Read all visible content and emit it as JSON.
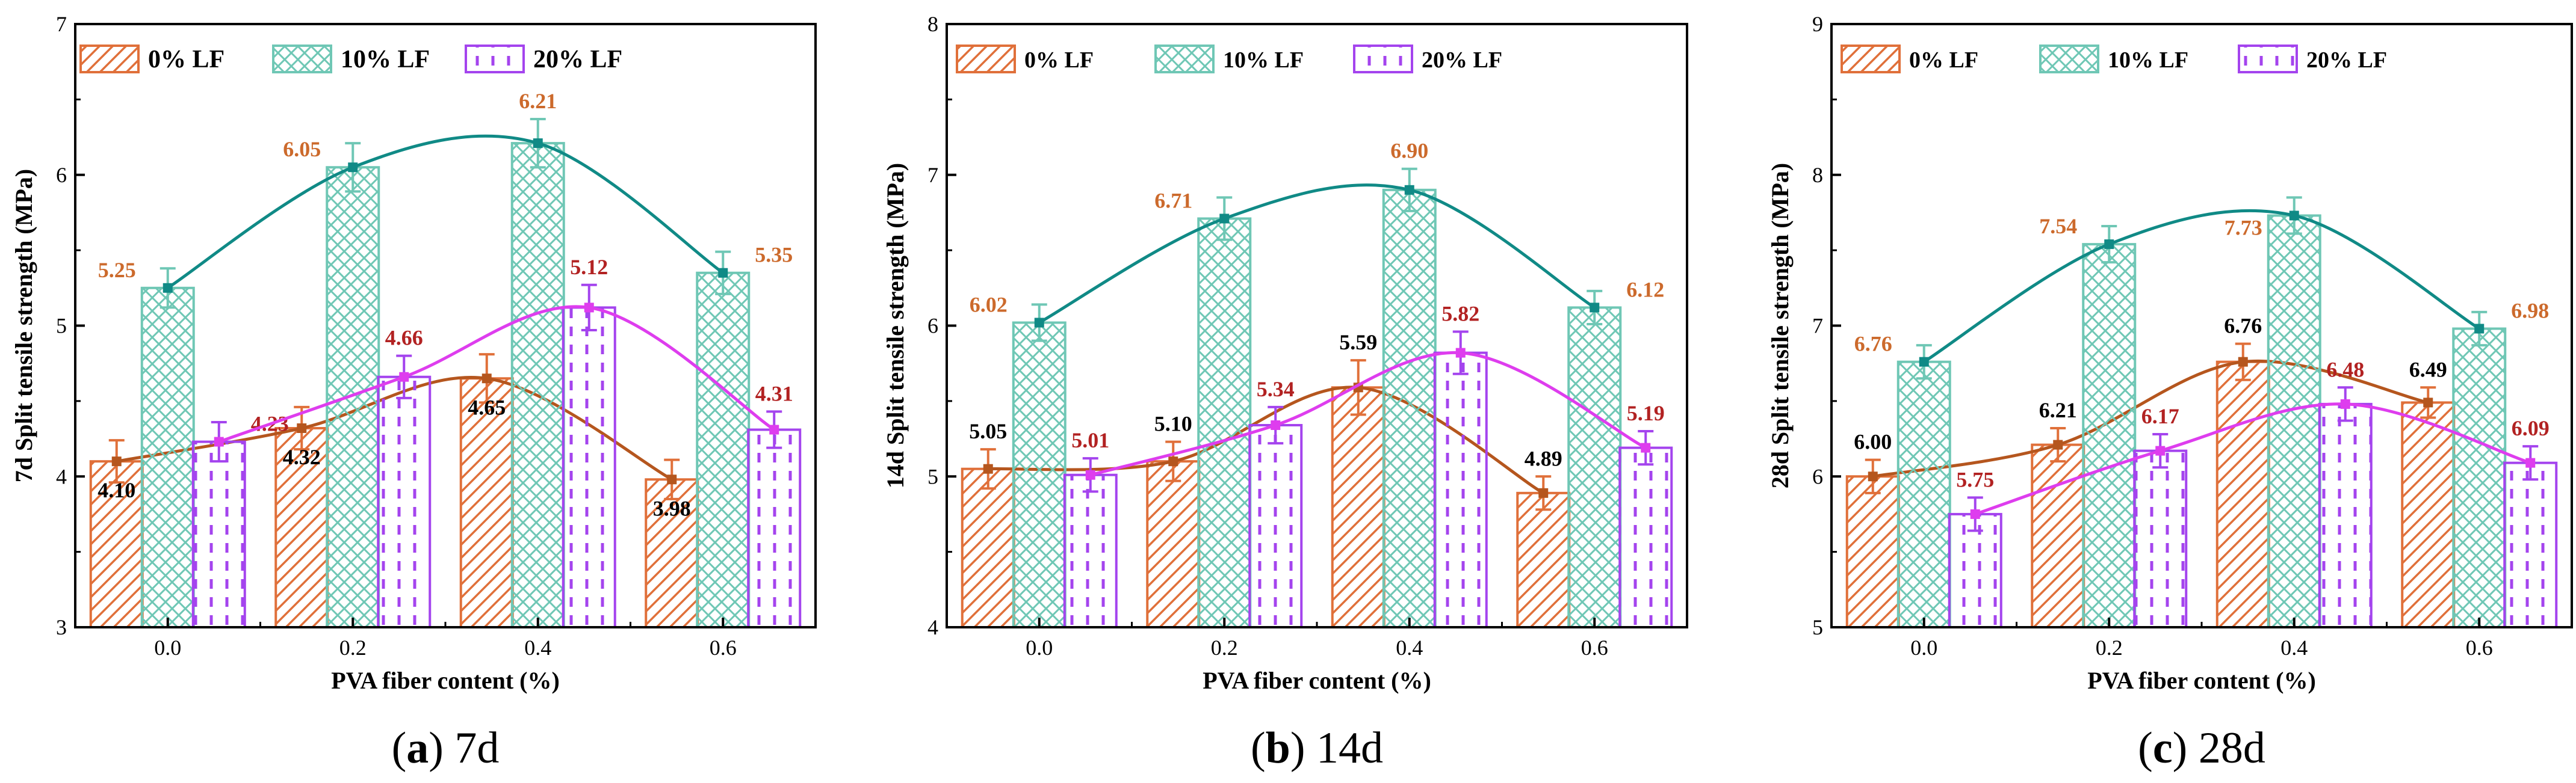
{
  "figure": {
    "legend_labels": [
      "0% LF",
      "10% LF",
      "20% LF"
    ]
  },
  "colors": {
    "lf0": "#E0703A",
    "lf10": "#6FC7B5",
    "lf20": "#A444EE",
    "curve0": "#B5561E",
    "curve10": "#108A86",
    "curve20": "#DE3DEE",
    "label_orange": "#CC6A2C",
    "label_red": "#B22222",
    "label_black": "#000000"
  },
  "chart_data": [
    {
      "type": "bar",
      "panel_label": "a",
      "caption": "7d",
      "xlabel": "PVA fiber content (%)",
      "ylabel": "7d Split tensile strength (MPa)",
      "categories": [
        "0.0",
        "0.2",
        "0.4",
        "0.6"
      ],
      "ylim": [
        3,
        7
      ],
      "yticks": [
        "3",
        "4",
        "5",
        "6",
        "7"
      ],
      "series": [
        {
          "name": "0% LF",
          "values": [
            4.1,
            4.32,
            4.65,
            3.98
          ],
          "errors": [
            0.14,
            0.14,
            0.16,
            0.13
          ],
          "labels": [
            "4.10",
            "4.32",
            "4.65",
            "3.98"
          ]
        },
        {
          "name": "10% LF",
          "values": [
            5.25,
            6.05,
            6.21,
            5.35
          ],
          "errors": [
            0.13,
            0.16,
            0.16,
            0.14
          ],
          "labels": [
            "5.25",
            "6.05",
            "6.21",
            "5.35"
          ]
        },
        {
          "name": "20% LF",
          "values": [
            4.23,
            4.66,
            5.12,
            4.31
          ],
          "errors": [
            0.13,
            0.14,
            0.15,
            0.12
          ],
          "labels": [
            "4.23",
            "4.66",
            "5.12",
            "4.31"
          ]
        }
      ]
    },
    {
      "type": "bar",
      "panel_label": "b",
      "caption": "14d",
      "xlabel": "PVA fiber content (%)",
      "ylabel": "14d Split tensile strength (MPa)",
      "categories": [
        "0.0",
        "0.2",
        "0.4",
        "0.6"
      ],
      "ylim": [
        4,
        8
      ],
      "yticks": [
        "4",
        "5",
        "6",
        "7",
        "8"
      ],
      "series": [
        {
          "name": "0% LF",
          "values": [
            5.05,
            5.1,
            5.59,
            4.89
          ],
          "errors": [
            0.13,
            0.13,
            0.18,
            0.11
          ],
          "labels": [
            "5.05",
            "5.10",
            "5.59",
            "4.89"
          ]
        },
        {
          "name": "10% LF",
          "values": [
            6.02,
            6.71,
            6.9,
            6.12
          ],
          "errors": [
            0.12,
            0.14,
            0.14,
            0.11
          ],
          "labels": [
            "6.02",
            "6.71",
            "6.90",
            "6.12"
          ]
        },
        {
          "name": "20% LF",
          "values": [
            5.01,
            5.34,
            5.82,
            5.19
          ],
          "errors": [
            0.11,
            0.12,
            0.14,
            0.11
          ],
          "labels": [
            "5.01",
            "5.34",
            "5.82",
            "5.19"
          ]
        }
      ]
    },
    {
      "type": "bar",
      "panel_label": "c",
      "caption": "28d",
      "xlabel": "PVA fiber content (%)",
      "ylabel": "28d Split tensile strength (MPa)",
      "categories": [
        "0.0",
        "0.2",
        "0.4",
        "0.6"
      ],
      "ylim": [
        5,
        9
      ],
      "yticks": [
        "5",
        "6",
        "7",
        "8",
        "9"
      ],
      "series": [
        {
          "name": "0% LF",
          "values": [
            6.0,
            6.21,
            6.76,
            6.49
          ],
          "errors": [
            0.11,
            0.11,
            0.12,
            0.1
          ],
          "labels": [
            "6.00",
            "6.21",
            "6.76",
            "6.49"
          ]
        },
        {
          "name": "10% LF",
          "values": [
            6.76,
            7.54,
            7.73,
            6.98
          ],
          "errors": [
            0.11,
            0.12,
            0.12,
            0.11
          ],
          "labels": [
            "6.76",
            "7.54",
            "7.73",
            "6.98"
          ]
        },
        {
          "name": "20% LF",
          "values": [
            5.75,
            6.17,
            6.48,
            6.09
          ],
          "errors": [
            0.11,
            0.11,
            0.11,
            0.11
          ],
          "labels": [
            "5.75",
            "6.17",
            "6.48",
            "6.09"
          ]
        }
      ]
    }
  ]
}
